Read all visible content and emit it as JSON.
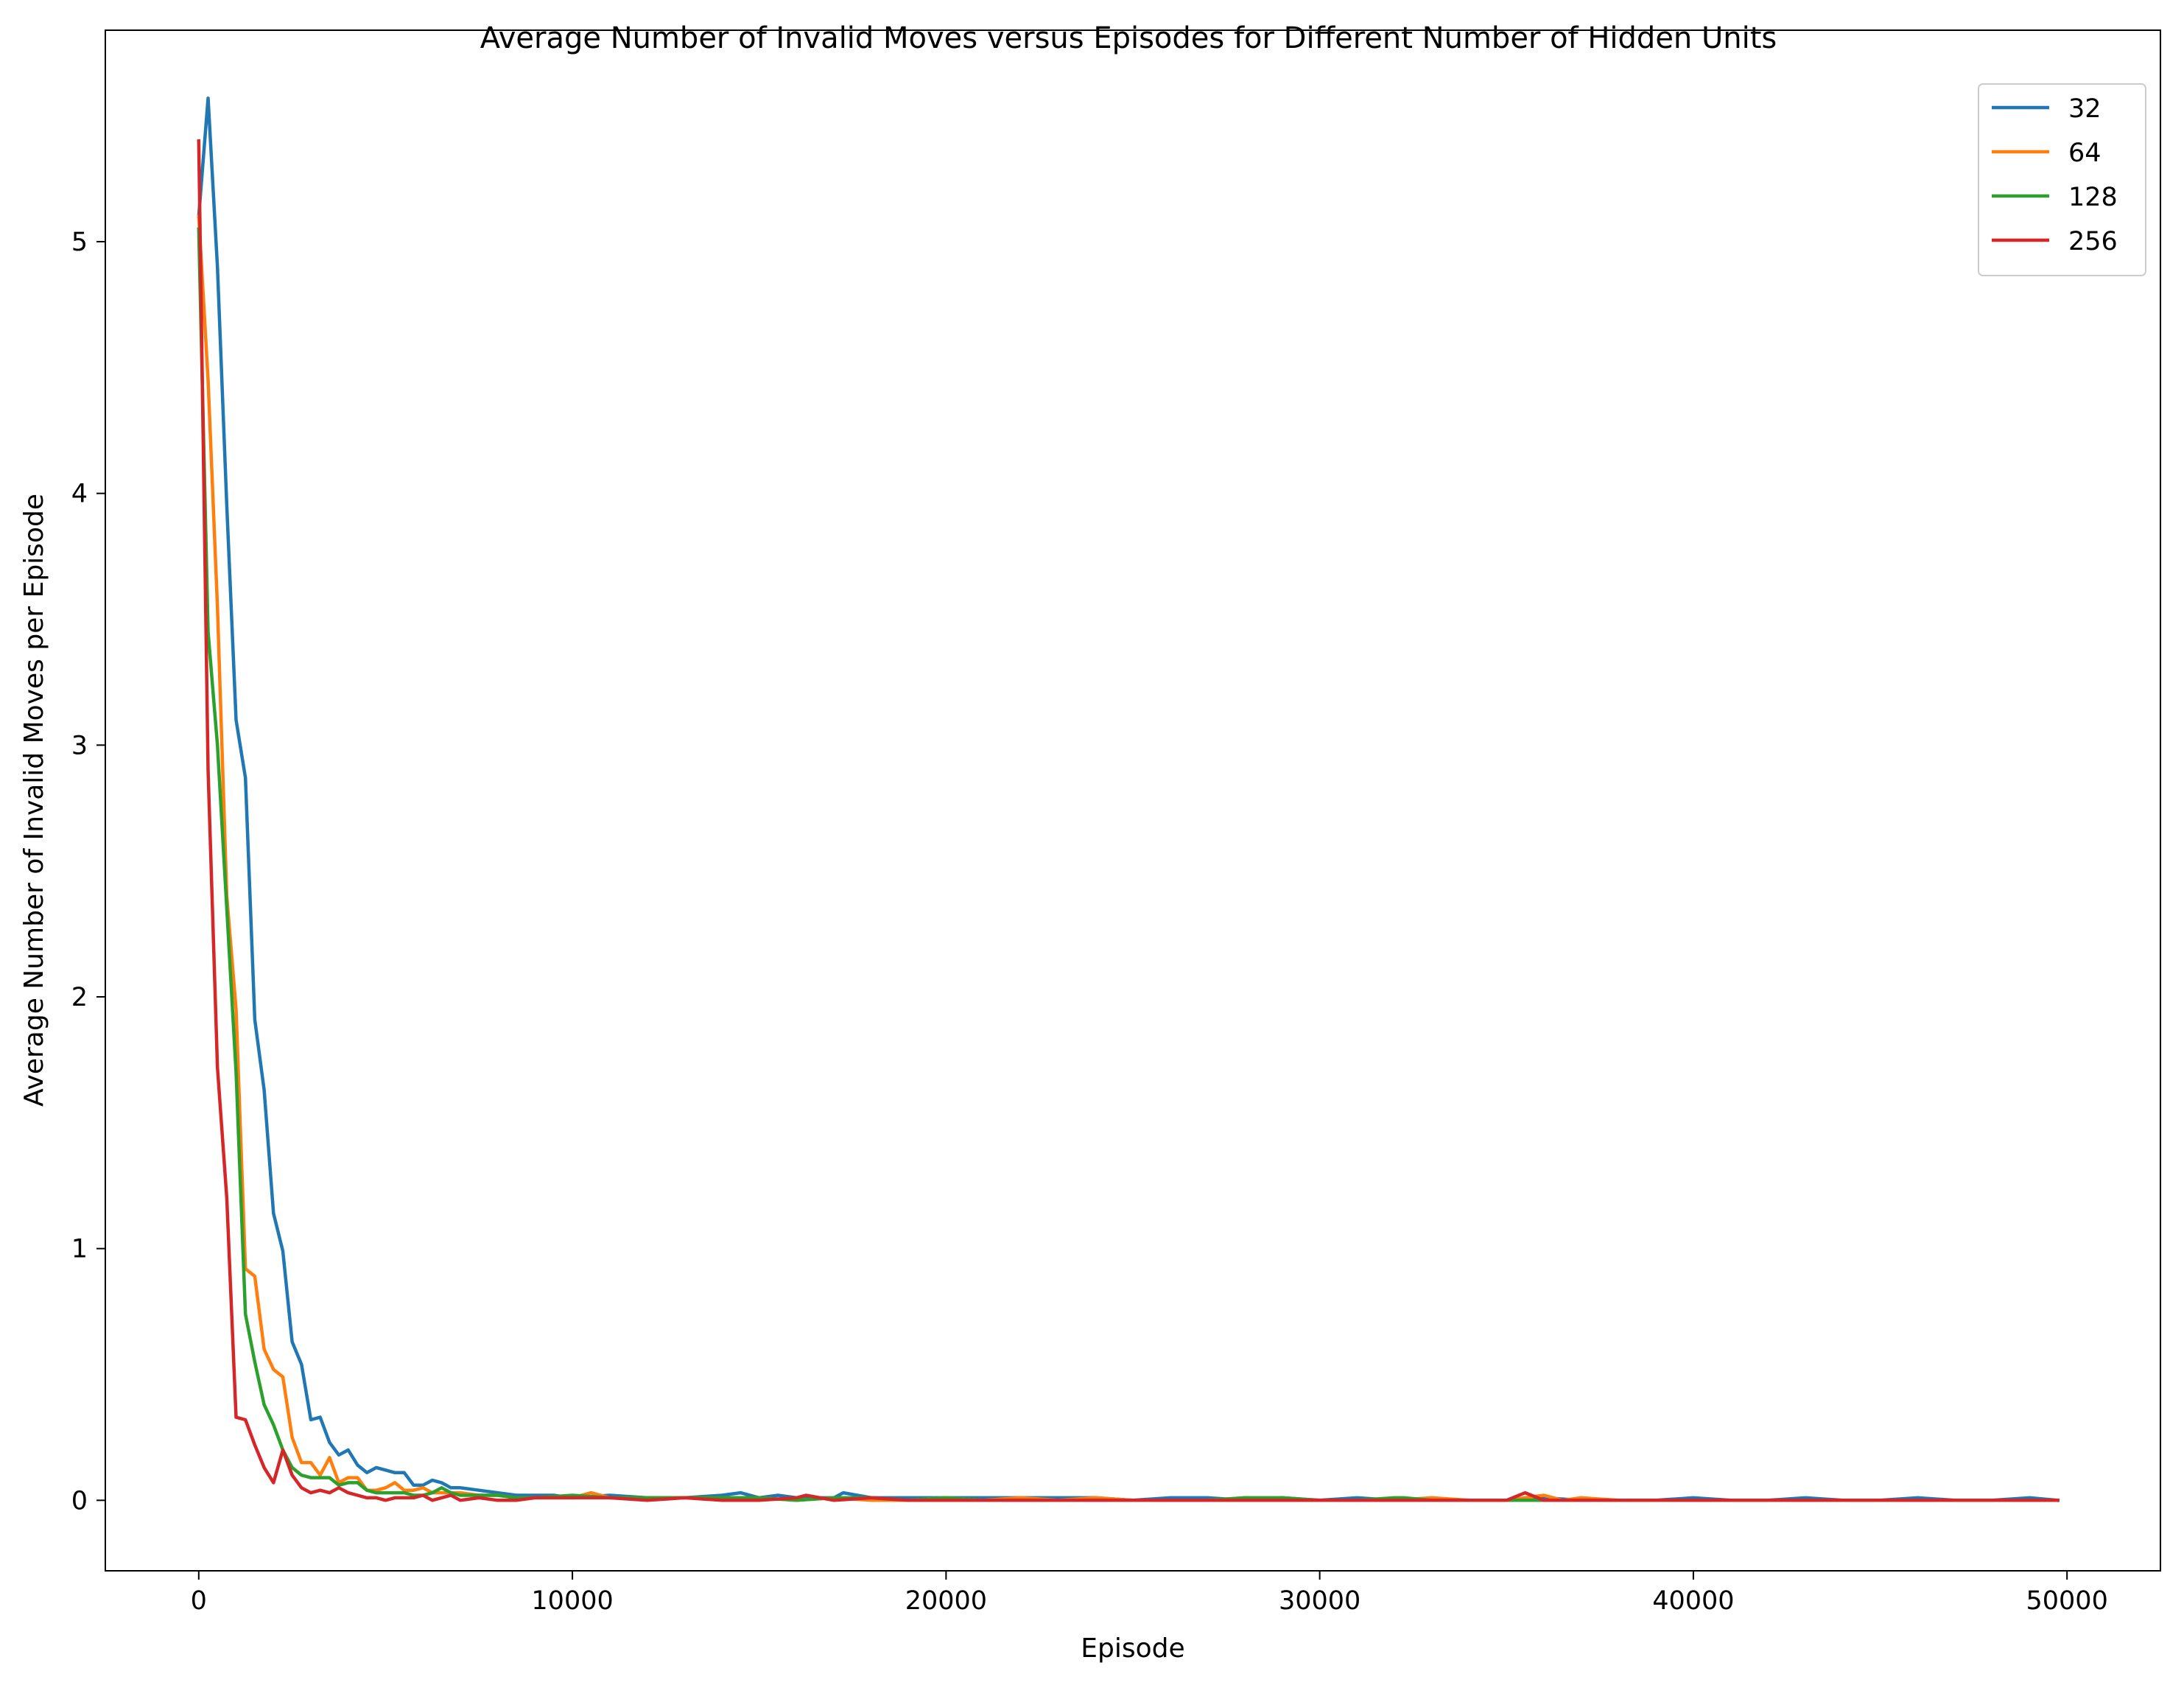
{
  "chart_data": {
    "type": "line",
    "title": "Average Number of Invalid Moves versus Episodes for Different Number of Hidden Units",
    "xlabel": "Episode",
    "ylabel": "Average Number of Invalid Moves per Episode",
    "xlim": [
      -2500,
      52500
    ],
    "ylim": [
      -0.28,
      5.84
    ],
    "xticks": [
      0,
      10000,
      20000,
      30000,
      40000,
      50000
    ],
    "xtick_labels": [
      "0",
      "10000",
      "20000",
      "30000",
      "40000",
      "50000"
    ],
    "yticks": [
      0,
      1,
      2,
      3,
      4,
      5
    ],
    "ytick_labels": [
      "0",
      "1",
      "2",
      "3",
      "4",
      "5"
    ],
    "grid": false,
    "legend_position": "top-right",
    "series": [
      {
        "name": "32",
        "color": "#1f77b4",
        "x": [
          0,
          250,
          500,
          750,
          1000,
          1250,
          1500,
          1750,
          2000,
          2250,
          2500,
          2750,
          3000,
          3250,
          3500,
          3750,
          4000,
          4250,
          4500,
          4750,
          5000,
          5250,
          5500,
          5750,
          6000,
          6250,
          6500,
          6750,
          7000,
          7500,
          8000,
          8500,
          9000,
          9500,
          10000,
          11000,
          12000,
          13000,
          14000,
          14500,
          15000,
          15500,
          16000,
          16500,
          17000,
          17250,
          18000,
          19000,
          20000,
          21000,
          22000,
          23000,
          24000,
          25000,
          26000,
          27000,
          28000,
          29000,
          30000,
          31000,
          32000,
          33000,
          34000,
          35000,
          36000,
          37000,
          38000,
          39000,
          40000,
          41000,
          42000,
          43000,
          44000,
          45000,
          46000,
          47000,
          48000,
          49000,
          49750
        ],
        "y": [
          5.1,
          5.57,
          4.9,
          3.95,
          3.1,
          2.87,
          1.91,
          1.63,
          1.14,
          0.99,
          0.63,
          0.54,
          0.32,
          0.33,
          0.23,
          0.18,
          0.2,
          0.14,
          0.11,
          0.13,
          0.12,
          0.11,
          0.11,
          0.06,
          0.06,
          0.08,
          0.07,
          0.05,
          0.05,
          0.04,
          0.03,
          0.02,
          0.02,
          0.02,
          0.01,
          0.02,
          0.01,
          0.01,
          0.02,
          0.03,
          0.01,
          0.02,
          0.01,
          0.01,
          0.01,
          0.03,
          0.01,
          0.01,
          0.01,
          0.01,
          0.01,
          0.01,
          0.01,
          0.0,
          0.01,
          0.01,
          0.0,
          0.01,
          0.0,
          0.01,
          0.0,
          0.0,
          0.0,
          0.0,
          0.01,
          0.0,
          0.0,
          0.0,
          0.01,
          0.0,
          0.0,
          0.01,
          0.0,
          0.0,
          0.01,
          0.0,
          0.0,
          0.01,
          0.0
        ]
      },
      {
        "name": "64",
        "color": "#ff7f0e",
        "x": [
          0,
          250,
          500,
          750,
          1000,
          1250,
          1500,
          1750,
          2000,
          2250,
          2500,
          2750,
          3000,
          3250,
          3500,
          3750,
          4000,
          4250,
          4500,
          4750,
          5000,
          5250,
          5500,
          5750,
          6000,
          6250,
          6500,
          6750,
          7000,
          7500,
          8000,
          8500,
          9000,
          9500,
          10000,
          10500,
          11000,
          12000,
          13000,
          14000,
          15000,
          16000,
          17000,
          18000,
          19000,
          20000,
          21000,
          22000,
          23000,
          24000,
          25000,
          26000,
          27000,
          28000,
          29000,
          30000,
          31000,
          32000,
          33000,
          34000,
          35000,
          36000,
          36500,
          37000,
          38000,
          39000,
          40000,
          41000,
          42000,
          43000,
          44000,
          45000,
          46000,
          47000,
          48000,
          49000,
          49750
        ],
        "y": [
          5.1,
          4.45,
          3.55,
          2.4,
          1.95,
          0.92,
          0.89,
          0.6,
          0.52,
          0.49,
          0.25,
          0.15,
          0.15,
          0.1,
          0.17,
          0.07,
          0.09,
          0.09,
          0.04,
          0.04,
          0.05,
          0.07,
          0.04,
          0.04,
          0.05,
          0.03,
          0.03,
          0.03,
          0.03,
          0.02,
          0.02,
          0.01,
          0.01,
          0.01,
          0.01,
          0.03,
          0.01,
          0.01,
          0.01,
          0.01,
          0.01,
          0.0,
          0.01,
          0.0,
          0.0,
          0.01,
          0.0,
          0.01,
          0.0,
          0.01,
          0.0,
          0.0,
          0.0,
          0.01,
          0.0,
          0.0,
          0.0,
          0.0,
          0.01,
          0.0,
          0.0,
          0.02,
          0.0,
          0.01,
          0.0,
          0.0,
          0.0,
          0.0,
          0.0,
          0.0,
          0.0,
          0.0,
          0.0,
          0.0,
          0.0,
          0.0,
          0.0
        ]
      },
      {
        "name": "128",
        "color": "#2ca02c",
        "x": [
          0,
          250,
          500,
          750,
          1000,
          1250,
          1500,
          1750,
          2000,
          2250,
          2500,
          2750,
          3000,
          3250,
          3500,
          3750,
          4000,
          4250,
          4500,
          4750,
          5000,
          5250,
          5500,
          5750,
          6000,
          6250,
          6500,
          6750,
          7000,
          7500,
          8000,
          8500,
          9000,
          10000,
          11000,
          12000,
          13000,
          14000,
          15000,
          16000,
          17000,
          18000,
          19000,
          20000,
          21000,
          22000,
          23000,
          24000,
          25000,
          26000,
          27000,
          28000,
          28500,
          29000,
          30000,
          31000,
          32000,
          32250,
          33000,
          34000,
          35000,
          36000,
          37000,
          38000,
          39000,
          40000,
          41000,
          42000,
          43000,
          44000,
          45000,
          46000,
          47000,
          48000,
          49000,
          49750
        ],
        "y": [
          5.05,
          3.45,
          3.0,
          2.35,
          1.7,
          0.74,
          0.55,
          0.38,
          0.3,
          0.2,
          0.13,
          0.1,
          0.09,
          0.09,
          0.09,
          0.06,
          0.07,
          0.07,
          0.04,
          0.03,
          0.03,
          0.03,
          0.03,
          0.02,
          0.02,
          0.03,
          0.05,
          0.03,
          0.02,
          0.02,
          0.02,
          0.01,
          0.01,
          0.02,
          0.01,
          0.01,
          0.01,
          0.01,
          0.01,
          0.0,
          0.01,
          0.01,
          0.0,
          0.01,
          0.0,
          0.0,
          0.0,
          0.0,
          0.0,
          0.0,
          0.0,
          0.01,
          0.01,
          0.01,
          0.0,
          0.0,
          0.01,
          0.01,
          0.0,
          0.0,
          0.0,
          0.0,
          0.0,
          0.0,
          0.0,
          0.0,
          0.0,
          0.0,
          0.0,
          0.0,
          0.0,
          0.0,
          0.0,
          0.0,
          0.0,
          0.0
        ]
      },
      {
        "name": "256",
        "color": "#d62728",
        "x": [
          0,
          250,
          500,
          750,
          1000,
          1250,
          1500,
          1750,
          2000,
          2250,
          2500,
          2750,
          3000,
          3250,
          3500,
          3750,
          4000,
          4250,
          4500,
          4750,
          5000,
          5250,
          5500,
          5750,
          6000,
          6250,
          6500,
          6750,
          7000,
          7500,
          8000,
          8500,
          9000,
          10000,
          11000,
          12000,
          13000,
          14000,
          15000,
          16000,
          16250,
          17000,
          18000,
          19000,
          20000,
          21000,
          22000,
          23000,
          24000,
          25000,
          26000,
          27000,
          28000,
          29000,
          30000,
          31000,
          32000,
          33000,
          34000,
          35000,
          35500,
          36000,
          37000,
          38000,
          39000,
          40000,
          41000,
          42000,
          43000,
          44000,
          45000,
          46000,
          47000,
          48000,
          49000,
          49750
        ],
        "y": [
          5.4,
          2.9,
          1.72,
          1.2,
          0.33,
          0.32,
          0.22,
          0.13,
          0.07,
          0.2,
          0.1,
          0.05,
          0.03,
          0.04,
          0.03,
          0.05,
          0.03,
          0.02,
          0.01,
          0.01,
          0.0,
          0.01,
          0.01,
          0.01,
          0.02,
          0.0,
          0.01,
          0.02,
          0.0,
          0.01,
          0.0,
          0.0,
          0.01,
          0.01,
          0.01,
          0.0,
          0.01,
          0.0,
          0.0,
          0.01,
          0.02,
          0.0,
          0.01,
          0.0,
          0.0,
          0.0,
          0.0,
          0.0,
          0.0,
          0.0,
          0.0,
          0.0,
          0.0,
          0.0,
          0.0,
          0.0,
          0.0,
          0.0,
          0.0,
          0.0,
          0.03,
          0.0,
          0.0,
          0.0,
          0.0,
          0.0,
          0.0,
          0.0,
          0.0,
          0.0,
          0.0,
          0.0,
          0.0,
          0.0,
          0.0,
          0.0
        ]
      }
    ]
  }
}
